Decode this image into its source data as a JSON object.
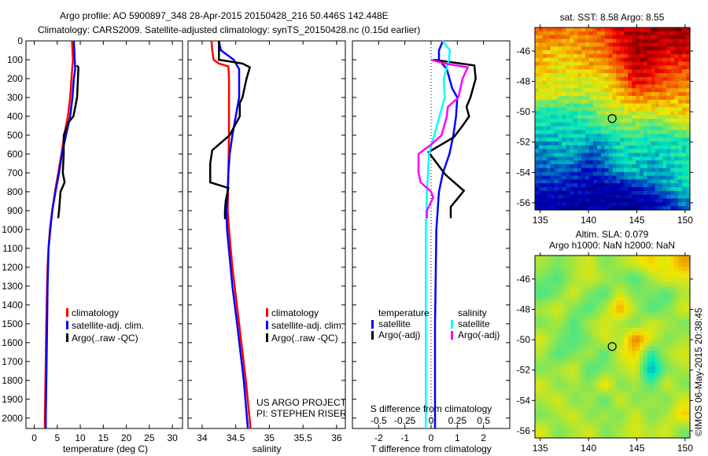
{
  "header": {
    "line1": "Argo profile: AO 5900897_348 28-Apr-2015 20150428_216 50.446S 142.448E",
    "line2": "Climatology: CARS2009. Satellite-adjusted climatology: synTS_20150428.nc (0.15d earlier)"
  },
  "credit": "©IMOS 06-May-2015 20:38:45",
  "colors": {
    "climatology": "#ff0000",
    "satellite": "#0000ff",
    "argo": "#000000",
    "s_satellite": "#00ffff",
    "s_argo": "#ff00ff"
  },
  "chart_data": [
    {
      "type": "line",
      "id": "temperature",
      "xlabel": "temperature (deg C)",
      "ylabel": "",
      "xlim": [
        -1.8,
        32.2
      ],
      "ylim": [
        0,
        2055
      ],
      "xticks": [
        "0",
        "5",
        "10",
        "15",
        "20",
        "25",
        "30"
      ],
      "xtick_values": [
        0,
        5,
        10,
        15,
        20,
        25,
        30
      ],
      "yticks": [
        "0",
        "100",
        "200",
        "300",
        "400",
        "500",
        "600",
        "700",
        "800",
        "900",
        "1000",
        "1100",
        "1200",
        "1300",
        "1400",
        "1500",
        "1600",
        "1700",
        "1800",
        "1900",
        "2000"
      ],
      "ytick_values": [
        0,
        100,
        200,
        300,
        400,
        500,
        600,
        700,
        800,
        900,
        1000,
        1100,
        1200,
        1300,
        1400,
        1500,
        1600,
        1700,
        1800,
        1900,
        2000
      ],
      "legend": [
        "climatology",
        "satellite-adj. clim.",
        "Argo(..raw -QC)"
      ],
      "series": [
        {
          "name": "climatology",
          "color": "#ff0000",
          "depth": [
            0,
            100,
            200,
            300,
            400,
            500,
            600,
            700,
            800,
            900,
            1000,
            1100,
            1200,
            1300,
            1500,
            1700,
            2000,
            2055
          ],
          "values": [
            8.2,
            8.4,
            8.1,
            7.8,
            7.3,
            6.5,
            5.9,
            5.2,
            4.5,
            3.9,
            3.4,
            3.1,
            2.9,
            2.8,
            2.6,
            2.5,
            2.3,
            2.3
          ]
        },
        {
          "name": "satellite-adj. clim.",
          "color": "#0000ff",
          "depth": [
            0,
            100,
            150,
            200,
            300,
            400,
            500,
            600,
            700,
            800,
            900,
            1000,
            1100,
            1300,
            1500,
            2000,
            2055
          ],
          "values": [
            8.6,
            8.8,
            8.9,
            8.6,
            8.3,
            7.8,
            6.9,
            6.0,
            5.4,
            4.6,
            3.9,
            3.5,
            3.1,
            2.9,
            2.8,
            2.5,
            2.5
          ]
        },
        {
          "name": "Argo(..raw -QC)",
          "color": "#000000",
          "depth": [
            130,
            140,
            200,
            300,
            400,
            430,
            500,
            600,
            700,
            750,
            800,
            900,
            940
          ],
          "values": [
            9.2,
            9.6,
            9.5,
            9.3,
            8.5,
            7.5,
            6.4,
            6.4,
            6.2,
            6.6,
            5.7,
            5.4,
            5.2
          ]
        }
      ]
    },
    {
      "type": "line",
      "id": "salinity",
      "xlabel": "salinity",
      "xlim": [
        33.79,
        36.13
      ],
      "ylim": [
        0,
        2055
      ],
      "xticks": [
        "34",
        "34.5",
        "35",
        "35.5",
        "36"
      ],
      "xtick_values": [
        34,
        34.5,
        35,
        35.5,
        36
      ],
      "legend": [
        "climatology",
        "satellite-adj. clim.",
        "Argo(..raw -QC)"
      ],
      "annotations": [
        "US ARGO PROJECT",
        "PI: STEPHEN RISER"
      ],
      "series": [
        {
          "name": "climatology",
          "color": "#ff0000",
          "depth": [
            0,
            50,
            100,
            120,
            135,
            200,
            500,
            900,
            1000,
            1200,
            1500,
            1800,
            2055
          ],
          "values": [
            34.14,
            34.15,
            34.17,
            34.25,
            34.39,
            34.4,
            34.4,
            34.38,
            34.4,
            34.45,
            34.55,
            34.65,
            34.72
          ]
        },
        {
          "name": "satellite-adj. clim.",
          "color": "#0000ff",
          "depth": [
            0,
            50,
            100,
            150,
            300,
            400,
            500,
            600,
            700,
            800,
            900,
            1000,
            1300,
            1500,
            1800,
            2055
          ],
          "values": [
            34.25,
            34.28,
            34.47,
            34.55,
            34.55,
            34.5,
            34.45,
            34.41,
            34.39,
            34.38,
            34.36,
            34.37,
            34.45,
            34.52,
            34.62,
            34.68
          ]
        },
        {
          "name": "Argo(..raw -QC)",
          "color": "#000000",
          "depth": [
            0,
            100,
            120,
            140,
            200,
            300,
            330,
            400,
            500,
            580,
            650,
            750,
            780,
            850,
            900,
            945
          ],
          "values": [
            34.25,
            34.25,
            34.6,
            34.71,
            34.66,
            34.6,
            34.56,
            34.56,
            34.41,
            34.15,
            34.12,
            34.12,
            34.39,
            34.35,
            34.34,
            34.34
          ]
        }
      ]
    },
    {
      "type": "line",
      "id": "difference",
      "xlabel": "T difference from climatology",
      "x2label": "S difference from climatology",
      "xlim": [
        -3,
        3
      ],
      "ylim": [
        0,
        2055
      ],
      "xticks": [
        "-2",
        "-1",
        "0",
        "1",
        "2"
      ],
      "xtick_values": [
        -2,
        -1,
        0,
        1,
        2
      ],
      "x2ticks": [
        "-0.5",
        "-0.25",
        "0",
        "0.25",
        "0.5"
      ],
      "x2tick_values": [
        -0.5,
        -0.25,
        0,
        0.25,
        0.5
      ],
      "legend": {
        "temperature_title": "temperature",
        "salinity_title": "salinity",
        "items": [
          "satellite",
          "Argo(-adj)",
          "satellite",
          "Argo(-adj)"
        ]
      },
      "series": [
        {
          "name": "T satellite",
          "axis": "T",
          "color": "#0000ff",
          "depth": [
            0,
            50,
            100,
            150,
            250,
            300,
            400,
            500,
            600,
            700,
            800,
            1000,
            1500,
            2055
          ],
          "values": [
            0.45,
            0.3,
            0.3,
            0.6,
            0.8,
            1.0,
            0.95,
            0.85,
            0.7,
            0.45,
            0.3,
            0.2,
            0.15,
            0.15
          ]
        },
        {
          "name": "T Argo(-adj)",
          "axis": "T",
          "color": "#000000",
          "depth": [
            100,
            130,
            200,
            300,
            350,
            400,
            450,
            510,
            590,
            710,
            795,
            880,
            940
          ],
          "values": [
            0.1,
            1.65,
            1.7,
            1.5,
            1.35,
            1.45,
            1.2,
            0.87,
            -0.1,
            0.55,
            1.25,
            0.75,
            0.75
          ]
        },
        {
          "name": "S satellite",
          "axis": "S",
          "color": "#00ffff",
          "depth": [
            0,
            50,
            100,
            200,
            300,
            400,
            500,
            600,
            800,
            1000,
            1500,
            2055
          ],
          "values": [
            0.11,
            0.18,
            0.17,
            0.12,
            0.13,
            0.08,
            0.03,
            -0.02,
            -0.04,
            -0.05,
            -0.05,
            -0.05
          ]
        },
        {
          "name": "S Argo(-adj)",
          "axis": "S",
          "color": "#ff00ff",
          "depth": [
            100,
            120,
            140,
            200,
            300,
            350,
            400,
            500,
            550,
            600,
            700,
            750,
            800,
            830,
            900,
            940
          ],
          "values": [
            0,
            0.13,
            0.35,
            0.3,
            0.26,
            0.16,
            0.15,
            0.1,
            0.0,
            -0.12,
            -0.12,
            -0.1,
            0.0,
            0.02,
            -0.04,
            -0.04
          ]
        }
      ]
    },
    {
      "type": "heatmap",
      "id": "sst_map",
      "title": "sat. SST: 8.58 Argo: 8.55",
      "xlim": [
        134.45,
        150.5
      ],
      "ylim": [
        -56.47,
        -44.45
      ],
      "xticks": [
        "135",
        "140",
        "145",
        "150"
      ],
      "xtick_values": [
        135,
        140,
        145,
        150
      ],
      "yticks": [
        "-46",
        "-48",
        "-50",
        "-52",
        "-54",
        "-56"
      ],
      "ytick_values": [
        -46,
        -48,
        -50,
        -52,
        -54,
        -56
      ],
      "marker": {
        "lon": 142.448,
        "lat": -50.446
      },
      "grid_note_scale": "values are normalized colour index 0..1 (jet)",
      "grid": [
        [
          0.75,
          0.75,
          0.72,
          0.75,
          0.78,
          0.9,
          0.95,
          0.95,
          0.95,
          0.95
        ],
        [
          0.7,
          0.65,
          0.68,
          0.72,
          0.75,
          0.85,
          0.95,
          0.95,
          0.9,
          0.92
        ],
        [
          0.68,
          0.62,
          0.65,
          0.68,
          0.7,
          0.8,
          0.92,
          0.9,
          0.82,
          0.8
        ],
        [
          0.62,
          0.6,
          0.62,
          0.6,
          0.62,
          0.72,
          0.88,
          0.85,
          0.78,
          0.75
        ],
        [
          0.6,
          0.58,
          0.55,
          0.55,
          0.6,
          0.65,
          0.75,
          0.72,
          0.72,
          0.7
        ],
        [
          0.4,
          0.4,
          0.42,
          0.45,
          0.55,
          0.58,
          0.6,
          0.6,
          0.62,
          0.65
        ],
        [
          0.38,
          0.38,
          0.38,
          0.4,
          0.45,
          0.48,
          0.5,
          0.45,
          0.5,
          0.55
        ],
        [
          0.3,
          0.32,
          0.35,
          0.3,
          0.3,
          0.38,
          0.4,
          0.38,
          0.38,
          0.4
        ],
        [
          0.25,
          0.3,
          0.28,
          0.2,
          0.25,
          0.38,
          0.35,
          0.33,
          0.35,
          0.4
        ],
        [
          0.22,
          0.22,
          0.2,
          0.15,
          0.2,
          0.3,
          0.35,
          0.3,
          0.32,
          0.38
        ],
        [
          0.15,
          0.15,
          0.12,
          0.1,
          0.1,
          0.1,
          0.15,
          0.2,
          0.3,
          0.35
        ],
        [
          0.1,
          0.1,
          0.08,
          0.08,
          0.08,
          0.08,
          0.08,
          0.1,
          0.15,
          0.25
        ]
      ]
    },
    {
      "type": "heatmap",
      "id": "sla_map",
      "title": "Altim. SLA: 0.079",
      "subtitle": "Argo h1000: NaN h2000: NaN",
      "xlim": [
        134.45,
        150.5
      ],
      "ylim": [
        -56.47,
        -44.45
      ],
      "xticks": [
        "135",
        "140",
        "145",
        "150"
      ],
      "xtick_values": [
        135,
        140,
        145,
        150
      ],
      "yticks": [
        "-46",
        "-48",
        "-50",
        "-52",
        "-54",
        "-56"
      ],
      "ytick_values": [
        -46,
        -48,
        -50,
        -52,
        -54,
        -56
      ],
      "marker": {
        "lon": 142.448,
        "lat": -50.446
      },
      "grid": [
        [
          0.55,
          0.5,
          0.55,
          0.6,
          0.5,
          0.55,
          0.6,
          0.65,
          0.6,
          0.7
        ],
        [
          0.5,
          0.45,
          0.55,
          0.6,
          0.55,
          0.5,
          0.45,
          0.55,
          0.62,
          0.6
        ],
        [
          0.45,
          0.5,
          0.6,
          0.5,
          0.45,
          0.6,
          0.5,
          0.5,
          0.45,
          0.55
        ],
        [
          0.55,
          0.6,
          0.5,
          0.45,
          0.55,
          0.7,
          0.55,
          0.45,
          0.5,
          0.6
        ],
        [
          0.5,
          0.55,
          0.45,
          0.55,
          0.6,
          0.55,
          0.5,
          0.6,
          0.55,
          0.5
        ],
        [
          0.6,
          0.5,
          0.45,
          0.5,
          0.6,
          0.55,
          0.75,
          0.6,
          0.5,
          0.55
        ],
        [
          0.55,
          0.45,
          0.5,
          0.55,
          0.45,
          0.6,
          0.65,
          0.4,
          0.55,
          0.6
        ],
        [
          0.5,
          0.55,
          0.6,
          0.45,
          0.5,
          0.55,
          0.6,
          0.3,
          0.5,
          0.55
        ],
        [
          0.6,
          0.5,
          0.55,
          0.5,
          0.65,
          0.5,
          0.55,
          0.45,
          0.6,
          0.5
        ],
        [
          0.55,
          0.6,
          0.5,
          0.55,
          0.45,
          0.6,
          0.5,
          0.55,
          0.5,
          0.6
        ],
        [
          0.5,
          0.55,
          0.6,
          0.5,
          0.55,
          0.5,
          0.6,
          0.5,
          0.55,
          0.65
        ],
        [
          0.6,
          0.5,
          0.55,
          0.6,
          0.5,
          0.55,
          0.6,
          0.55,
          0.6,
          0.5
        ]
      ]
    }
  ]
}
